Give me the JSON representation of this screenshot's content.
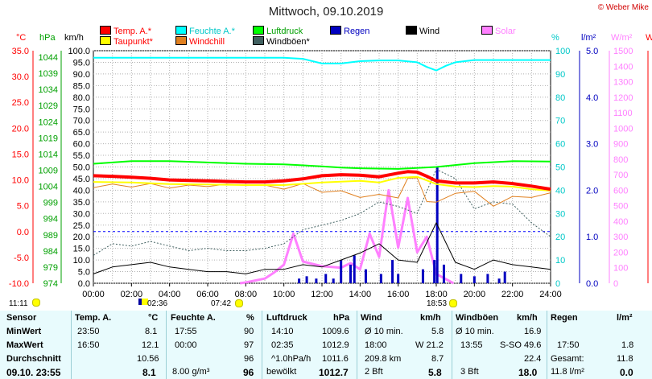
{
  "title": "Mittwoch, 09.10.2019",
  "credit": "© Weber Mike",
  "legend": [
    {
      "label": "Temp. A.*",
      "color": "#ff0000"
    },
    {
      "label": "Feuchte A.*",
      "color": "#00ffff"
    },
    {
      "label": "Luftdruck",
      "color": "#00ff00"
    },
    {
      "label": "Regen",
      "color": "#0000c0"
    },
    {
      "label": "Wind",
      "color": "#000000"
    },
    {
      "label": "Solar",
      "color": "#ff80ff"
    },
    {
      "label": "Taupunkt*",
      "color": "#ffff00"
    },
    {
      "label": "Windchill",
      "color": "#e08020"
    },
    {
      "label": "Windböen*",
      "color": "#406060"
    }
  ],
  "axis_units": {
    "temp": "°C",
    "pressure": "hPa",
    "wind": "km/h",
    "humidity": "%",
    "rain": "l/m²",
    "solar": "W/m²",
    "cut": "W"
  },
  "temp_ticks": [
    "35.0",
    "30.0",
    "25.0",
    "20.0",
    "15.0",
    "10.0",
    "5.0",
    "0.0",
    "-5.0",
    "-10.0"
  ],
  "pressure_ticks": [
    "1044",
    "1039",
    "1034",
    "1029",
    "1024",
    "1019",
    "1014",
    "1009",
    "1004",
    "999",
    "994",
    "989",
    "984",
    "979",
    "974"
  ],
  "wind_ticks": [
    "100.0",
    "95.0",
    "90.0",
    "85.0",
    "80.0",
    "75.0",
    "70.0",
    "65.0",
    "60.0",
    "55.0",
    "50.0",
    "45.0",
    "40.0",
    "35.0",
    "30.0",
    "25.0",
    "20.0",
    "15.0",
    "10.0",
    "5.0",
    "0.0"
  ],
  "humidity_ticks": [
    "100",
    "90",
    "80",
    "70",
    "60",
    "50",
    "40",
    "30",
    "20",
    "10",
    "0"
  ],
  "rain_ticks": [
    "5.0",
    "4.0",
    "3.0",
    "2.0",
    "1.0",
    "0.0"
  ],
  "solar_ticks": [
    "1500",
    "1400",
    "1300",
    "1200",
    "1100",
    "1000",
    "900",
    "800",
    "700",
    "600",
    "500",
    "400",
    "300",
    "200",
    "100",
    "0"
  ],
  "time_ticks": [
    "00:00",
    "02:00",
    "04:00",
    "06:00",
    "08:00",
    "10:00",
    "12:00",
    "14:00",
    "16:00",
    "18:00",
    "20:00",
    "22:00",
    "24:00"
  ],
  "sun_events": {
    "moon_rise": "11:11",
    "moon_set": "02:36",
    "sunrise": "07:42",
    "sunset": "18:53"
  },
  "chart_data": {
    "type": "line",
    "x_unit": "time of day (h)",
    "xlim": [
      0,
      24
    ],
    "axes": {
      "temp_c": [
        -10,
        35
      ],
      "pressure_hpa": [
        974,
        1046
      ],
      "wind_kmh": [
        0,
        100
      ],
      "humidity_pct": [
        0,
        100
      ],
      "rain_lm2": [
        0,
        5
      ],
      "solar_wm2": [
        0,
        1500
      ]
    },
    "grid": true,
    "legend_position": "top",
    "series": [
      {
        "name": "Temp. A.*",
        "axis": "temp_c",
        "color": "#ff0000",
        "x": [
          0,
          1,
          2,
          3,
          4,
          5,
          6,
          7,
          8,
          9,
          10,
          11,
          12,
          13,
          14,
          15,
          16,
          16.5,
          17,
          17.5,
          18,
          19,
          20,
          21,
          22,
          23,
          24
        ],
        "y": [
          10.8,
          10.7,
          10.5,
          10.3,
          10.0,
          9.9,
          9.8,
          9.7,
          9.6,
          9.6,
          9.8,
          10.2,
          10.8,
          11.0,
          10.9,
          10.6,
          11.3,
          11.6,
          11.5,
          10.7,
          9.8,
          9.4,
          9.4,
          9.6,
          9.3,
          8.8,
          8.2
        ]
      },
      {
        "name": "Taupunkt*",
        "axis": "temp_c",
        "color": "#ffff00",
        "x": [
          0,
          2,
          4,
          6,
          8,
          10,
          12,
          14,
          15,
          16,
          17,
          18,
          19,
          20,
          21,
          22,
          23,
          24
        ],
        "y": [
          9.6,
          9.5,
          9.2,
          9.1,
          9.0,
          9.0,
          9.5,
          9.8,
          9.5,
          10.4,
          10.6,
          9.2,
          8.7,
          8.6,
          8.8,
          8.7,
          8.2,
          7.9
        ]
      },
      {
        "name": "Windchill",
        "axis": "temp_c",
        "color": "#e08020",
        "x": [
          0,
          1,
          2,
          3,
          4,
          5,
          6,
          7,
          8,
          9,
          10,
          11,
          12,
          13,
          14,
          15,
          16,
          16.5,
          17,
          17.5,
          18,
          19,
          20,
          21,
          22,
          23,
          24
        ],
        "y": [
          8.5,
          9.2,
          8.6,
          9.3,
          8.4,
          9.0,
          8.7,
          9.2,
          8.9,
          9.0,
          8.2,
          9.3,
          7.6,
          7.9,
          6.6,
          7.2,
          6.5,
          10.3,
          10.4,
          5.8,
          5.7,
          7.4,
          7.8,
          4.9,
          6.8,
          6.6,
          7.5
        ]
      },
      {
        "name": "Feuchte A.*",
        "axis": "humidity_pct",
        "color": "#00ffff",
        "x": [
          0,
          2,
          4,
          6,
          8,
          10,
          11,
          12,
          13,
          14,
          15,
          16,
          17,
          17.5,
          18,
          18.5,
          19,
          20,
          22,
          24
        ],
        "y": [
          97,
          97,
          97,
          97,
          97,
          97,
          96.5,
          94.5,
          94.5,
          95.5,
          95.8,
          95.8,
          95,
          93,
          91.5,
          93.5,
          95,
          96,
          96,
          96
        ]
      },
      {
        "name": "Luftdruck",
        "axis": "pressure_hpa",
        "color": "#00ff00",
        "x": [
          0,
          2,
          4,
          6,
          8,
          10,
          12,
          13,
          14,
          16,
          18,
          19,
          20,
          22,
          24
        ],
        "y": [
          1011.0,
          1011.8,
          1011.8,
          1011.4,
          1011.0,
          1010.8,
          1010.2,
          1009.8,
          1009.6,
          1009.4,
          1010.0,
          1010.6,
          1011.2,
          1011.8,
          1011.7
        ]
      },
      {
        "name": "Wind",
        "axis": "wind_kmh",
        "color": "#000000",
        "x": [
          0,
          1,
          2,
          3,
          4,
          5,
          6,
          7,
          8,
          9,
          10,
          11,
          12,
          13,
          14,
          15,
          16,
          17,
          18,
          19,
          20,
          21,
          22,
          23,
          24
        ],
        "y": [
          4,
          7,
          8,
          9,
          7,
          6,
          5,
          5,
          4,
          6,
          6,
          8,
          7,
          10,
          13,
          17,
          10,
          9,
          26,
          9,
          6,
          10,
          8,
          7,
          6
        ]
      },
      {
        "name": "Windböen*",
        "axis": "wind_kmh",
        "color": "#406060",
        "x": [
          0,
          1,
          2,
          3,
          4,
          5,
          6,
          7,
          8,
          9,
          10,
          11,
          12,
          13,
          14,
          15,
          16,
          17,
          18,
          19,
          20,
          21,
          22,
          23,
          24
        ],
        "y": [
          12,
          17,
          16,
          18,
          16,
          14,
          15,
          14,
          14,
          15,
          17,
          23,
          25,
          27,
          30,
          35,
          33,
          30,
          49,
          45,
          32,
          35,
          34,
          26,
          20
        ]
      },
      {
        "name": "Solar",
        "axis": "solar_wm2",
        "color": "#ff80ff",
        "x": [
          7.7,
          8,
          9,
          9.5,
          10,
          10.5,
          11,
          12,
          13,
          13.5,
          14,
          14.5,
          15,
          15.5,
          16,
          16.5,
          17,
          17.5,
          18,
          18.9
        ],
        "y": [
          0,
          5,
          30,
          70,
          120,
          320,
          140,
          110,
          100,
          130,
          90,
          320,
          170,
          600,
          230,
          550,
          200,
          300,
          60,
          0
        ]
      },
      {
        "name": "Regen",
        "axis": "rain_lm2",
        "color": "#0000c0",
        "type": "bar",
        "x": [
          10.8,
          11.2,
          11.7,
          12.2,
          12.6,
          13.0,
          13.5,
          13.7,
          14.3,
          15.1,
          15.7,
          16.0,
          17.3,
          17.9,
          18.05,
          18.4,
          19.3,
          20.0,
          20.7,
          21.3,
          21.6
        ],
        "y": [
          0.1,
          0.15,
          0.1,
          0.2,
          0.1,
          0.5,
          0.4,
          0.6,
          0.3,
          0.2,
          0.5,
          0.2,
          0.3,
          0.5,
          2.5,
          0.4,
          0.2,
          0.15,
          0.2,
          0.1,
          0.25
        ]
      }
    ]
  },
  "table": {
    "headers": [
      "Sensor",
      "Temp. A.",
      "°C",
      "Feuchte A.",
      "%",
      "Luftdruck",
      "hPa",
      "Wind",
      "km/h",
      "Windböen",
      "km/h",
      "Regen",
      "l/m²"
    ],
    "rows": [
      [
        "MinWert",
        "23:50",
        "8.1",
        "17:55",
        "90",
        "14:10",
        "1009.6",
        "Ø 10 min.",
        "5.8",
        "Ø 10 min.",
        "16.9",
        "",
        ""
      ],
      [
        "MaxWert",
        "16:50",
        "12.1",
        "00:00",
        "97",
        "02:35",
        "1012.9",
        "18:00",
        "W 21.2",
        "13:55",
        "S-SO 49.6",
        "17:50",
        "1.8"
      ],
      [
        "Durchschnitt",
        "",
        "10.56",
        "",
        "96",
        "^1.0hPa/h",
        "1011.6",
        "209.8 km",
        "8.7",
        "",
        "22.4",
        "Gesamt:",
        "11.8"
      ],
      [
        "09.10. 23:55",
        "",
        "8.1",
        "8.00 g/m³",
        "96",
        "bewölkt",
        "1012.7",
        "2 Bft",
        "5.8",
        "3 Bft",
        "18.0",
        "11.8 l/m²",
        "0.0"
      ]
    ]
  }
}
